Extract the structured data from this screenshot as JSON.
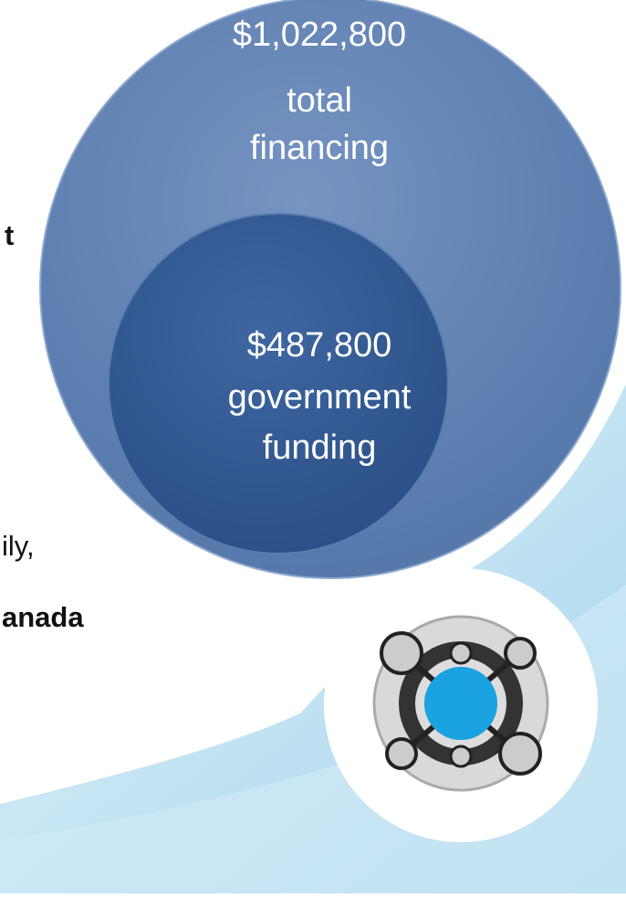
{
  "outer": {
    "amount": "$1,022,800",
    "line1": "total",
    "line2": "financing"
  },
  "inner": {
    "amount": "$487,800",
    "line1": "government",
    "line2": "funding"
  },
  "left_text": {
    "fragment1": "t",
    "fragment2": "ily,",
    "fragment3": "anada"
  }
}
